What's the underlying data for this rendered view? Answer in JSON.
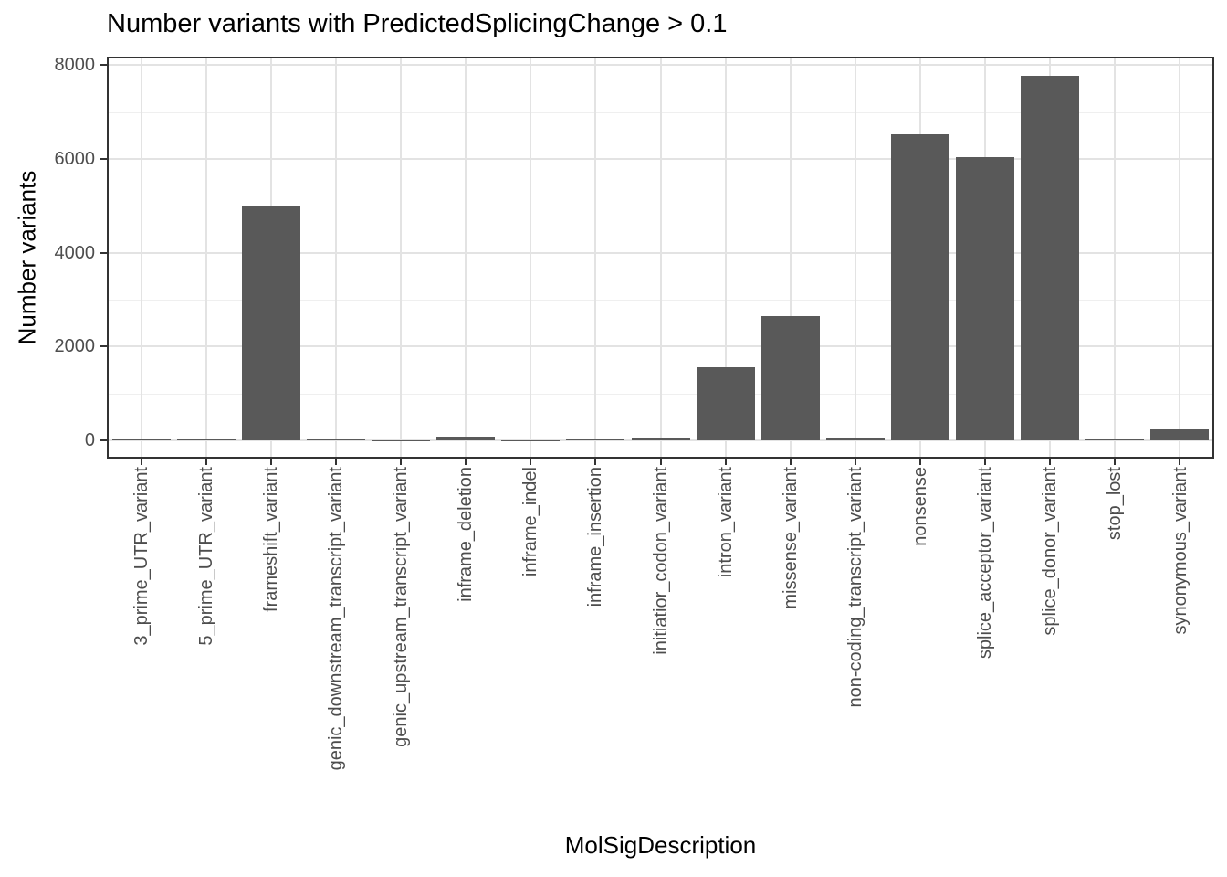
{
  "chart_data": {
    "type": "bar",
    "title": "Number variants with PredictedSplicingChange > 0.1",
    "xlabel": "MolSigDescription",
    "ylabel": "Number variants",
    "categories": [
      "3_prime_UTR_variant",
      "5_prime_UTR_variant",
      "frameshift_variant",
      "genic_downstream_transcript_variant",
      "genic_upstream_transcript_variant",
      "inframe_deletion",
      "inframe_indel",
      "inframe_insertion",
      "initiatior_codon_variant",
      "intron_variant",
      "missense_variant",
      "non-coding_transcript_variant",
      "nonsense",
      "splice_acceptor_variant",
      "splice_donor_variant",
      "stop_lost",
      "synonymous_variant"
    ],
    "values": [
      25,
      45,
      5010,
      20,
      5,
      85,
      5,
      15,
      65,
      1550,
      2650,
      60,
      6520,
      6040,
      7780,
      30,
      240
    ],
    "yticks": [
      0,
      2000,
      4000,
      6000,
      8000
    ],
    "yticks_minor": [
      1000,
      3000,
      5000,
      7000
    ],
    "ylim": [
      -390,
      8180
    ],
    "x_tick_rotation_degrees": 90,
    "grid": "horizontal major+minor, vertical major at each category",
    "legend": "none"
  },
  "colors": {
    "bar_fill": "#595959",
    "panel_border": "#333333",
    "tick_mark": "#333333",
    "axis_text": "#4d4d4d",
    "title_text": "#000000",
    "grid_major": "#e3e3e3",
    "grid_minor": "#efefef",
    "background": "#ffffff"
  }
}
